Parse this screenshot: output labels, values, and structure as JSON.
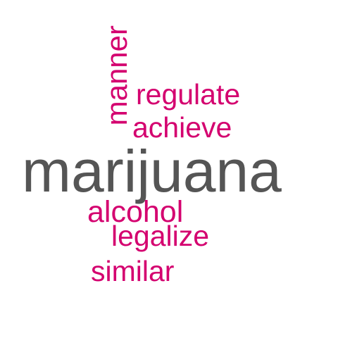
{
  "colors": {
    "background": "#ffffff",
    "primary_word": "#555555",
    "secondary_words": "#d4006f"
  },
  "word_cloud": {
    "words": {
      "manner": "manner",
      "regulate": "regulate",
      "achieve": "achieve",
      "marijuana": "marijuana",
      "alcohol": "alcohol",
      "legalize": "legalize",
      "similar": "similar"
    }
  }
}
